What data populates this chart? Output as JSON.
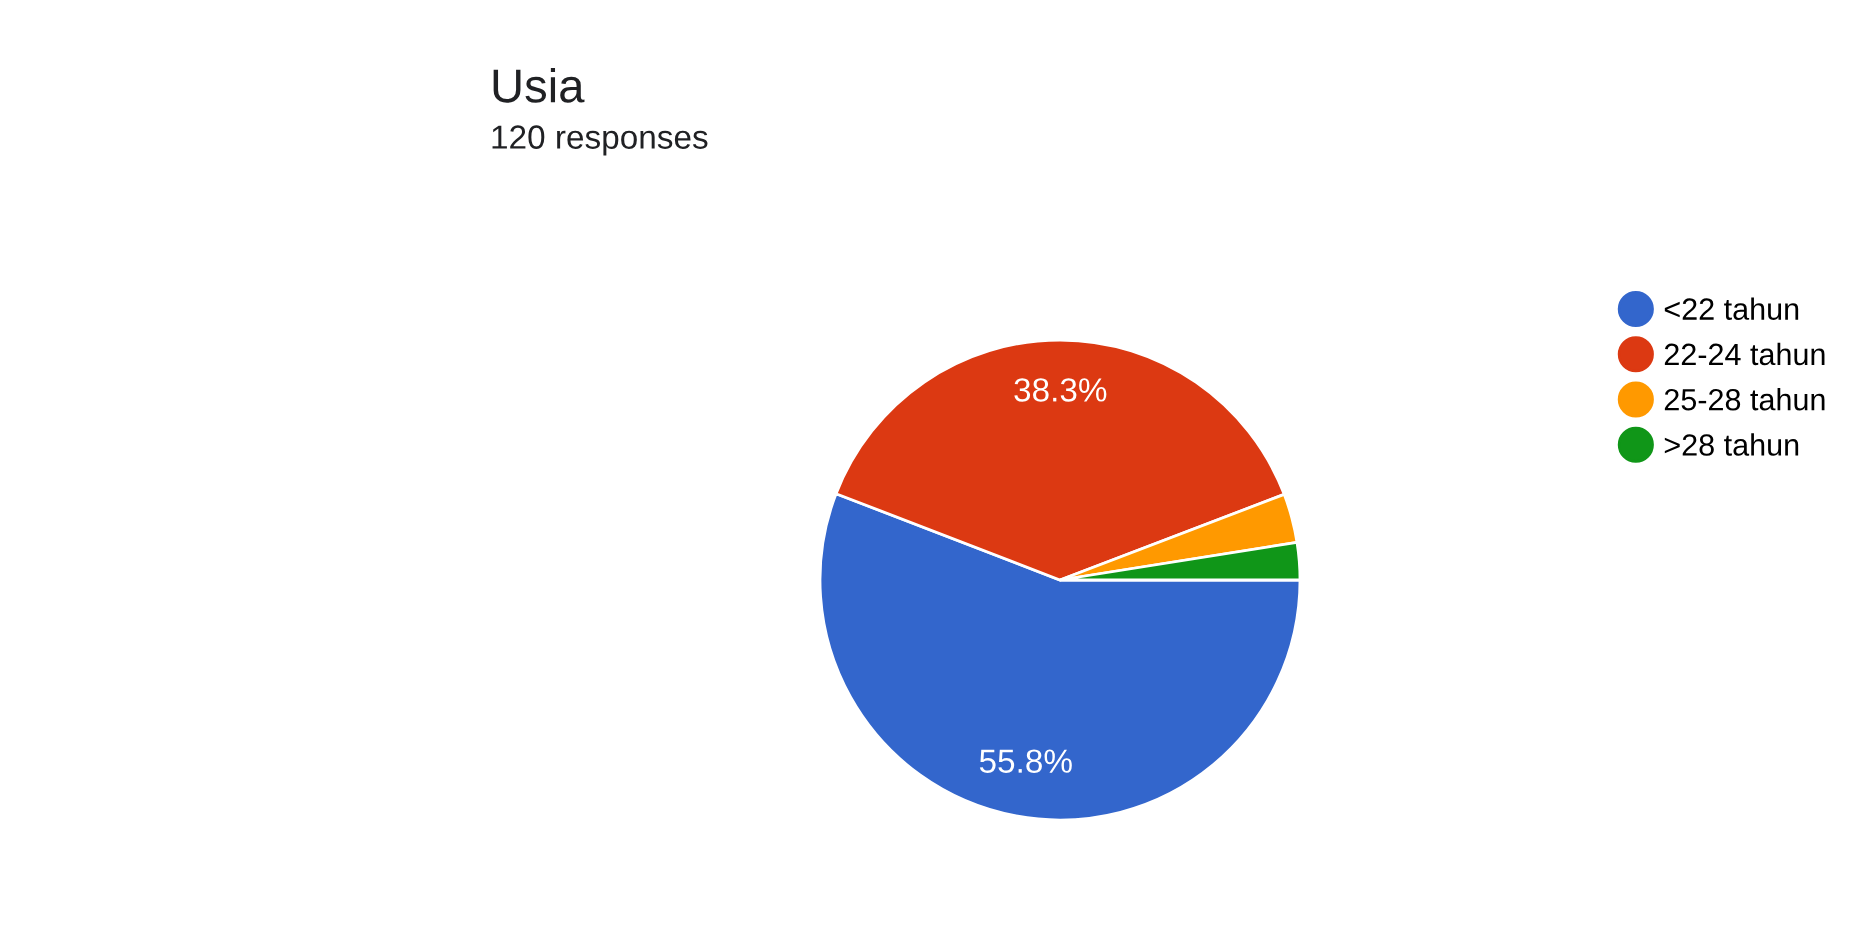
{
  "chart_data": {
    "type": "pie",
    "title": "Usia",
    "subtitle": "120 responses",
    "categories": [
      "<22 tahun",
      "22-24 tahun",
      "25-28 tahun",
      ">28 tahun"
    ],
    "values": [
      55.8,
      38.3,
      3.3,
      2.5
    ],
    "colors": [
      "#3366cc",
      "#dc3912",
      "#ff9900",
      "#109618"
    ],
    "value_labels": [
      "55.8%",
      "38.3%",
      null,
      null
    ],
    "legend": "right"
  }
}
